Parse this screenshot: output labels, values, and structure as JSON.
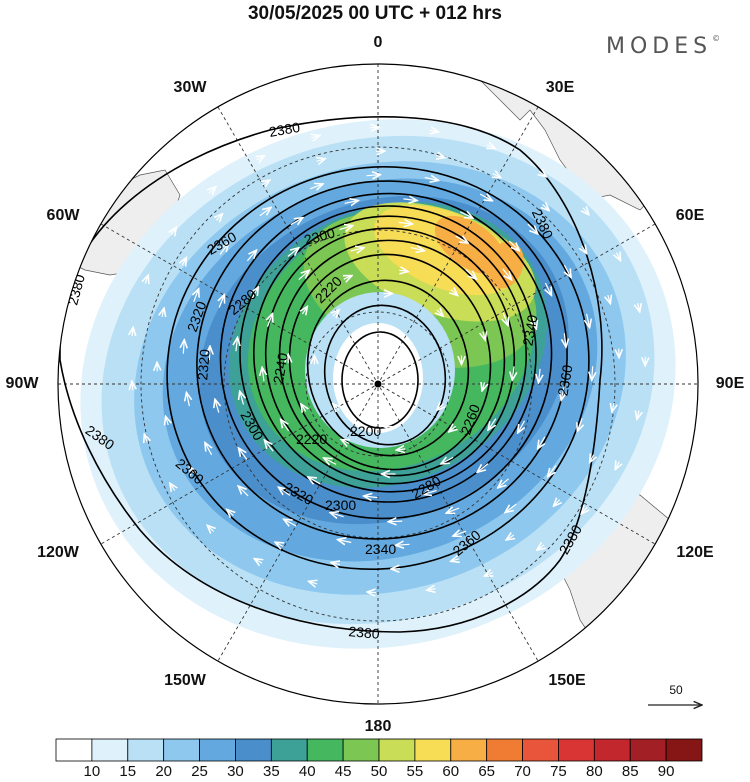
{
  "title": "30/05/2025  00 UTC  + 012 hrs",
  "brand": "MODES",
  "brand_mark": "©",
  "lon_labels": {
    "l0": "0",
    "l30e": "30E",
    "l60e": "60E",
    "l90e": "90E",
    "l120e": "120E",
    "l150e": "150E",
    "l180": "180",
    "l150w": "150W",
    "l120w": "120W",
    "l90w": "90W",
    "l60w": "60W",
    "l30w": "30W"
  },
  "reference_vector": {
    "value": "50"
  },
  "contour_levels": [
    "2200",
    "2220",
    "2240",
    "2260",
    "2280",
    "2300",
    "2320",
    "2340",
    "2360",
    "2380"
  ],
  "colorbar": {
    "ticks": [
      "10",
      "15",
      "20",
      "25",
      "30",
      "35",
      "40",
      "45",
      "50",
      "55",
      "60",
      "65",
      "70",
      "75",
      "80",
      "85",
      "90"
    ],
    "colors": [
      "#ffffff",
      "#dff1fb",
      "#b9e0f5",
      "#8ec8ee",
      "#63a9df",
      "#4a8ecc",
      "#3ea197",
      "#45b85f",
      "#7cc653",
      "#c9dd56",
      "#f7dc56",
      "#f6ae45",
      "#f07b33",
      "#e9553a",
      "#d93535",
      "#c1272d",
      "#a31f26",
      "#861515"
    ]
  },
  "colors": {
    "land": "#eeeeee",
    "grid": "#333333",
    "contour": "#000000",
    "vectors": "#ffffff"
  }
}
